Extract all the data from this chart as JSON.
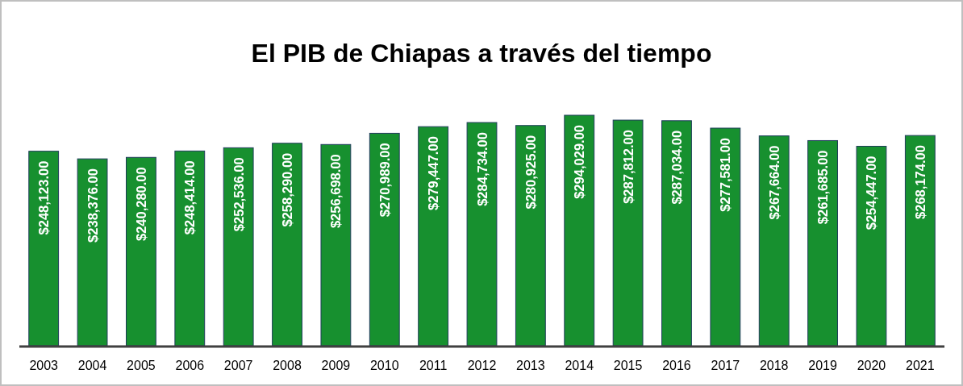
{
  "chart_data": {
    "type": "bar",
    "title": "El PIB de Chiapas a través del tiempo",
    "categories": [
      "2003",
      "2004",
      "2005",
      "2006",
      "2007",
      "2008",
      "2009",
      "2010",
      "2011",
      "2012",
      "2013",
      "2014",
      "2015",
      "2016",
      "2017",
      "2018",
      "2019",
      "2020",
      "2021"
    ],
    "values": [
      248123,
      238376,
      240280,
      248414,
      252536,
      258290,
      256698,
      270989,
      279447,
      284734,
      280925,
      294029,
      287812,
      287034,
      277581,
      267664,
      261685,
      254447,
      268174
    ],
    "value_labels": [
      "$248,123.00",
      "$238,376.00",
      "$240,280.00",
      "$248,414.00",
      "$252,536.00",
      "$258,290.00",
      "$256,698.00",
      "$270,989.00",
      "$279,447.00",
      "$284,734.00",
      "$280,925.00",
      "$294,029.00",
      "$287,812.00",
      "$287,034.00",
      "$277,581.00",
      "$267,664.00",
      "$261,685.00",
      "$254,447.00",
      "$268,174.00"
    ],
    "color": "#17902f"
  }
}
